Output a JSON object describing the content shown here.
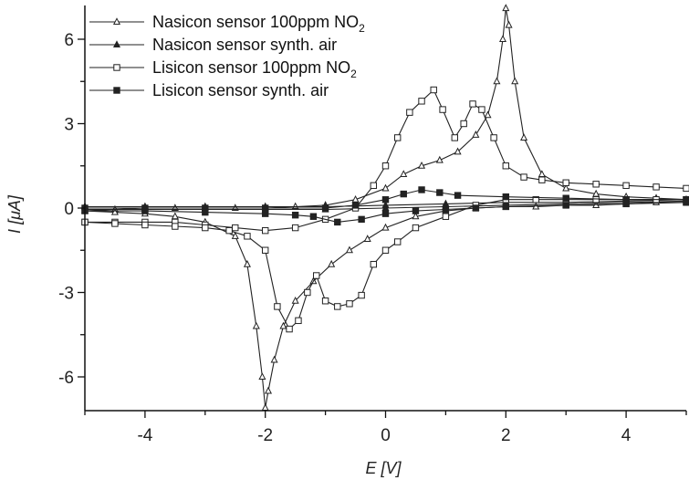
{
  "chart_data": {
    "type": "line",
    "xlabel": "E [V]",
    "ylabel": "I [μA]",
    "xlim": [
      -5,
      5
    ],
    "ylim": [
      -7.2,
      7.2
    ],
    "xticks": [
      -4,
      -2,
      0,
      2,
      4
    ],
    "yticks": [
      -6,
      -3,
      0,
      3,
      6
    ],
    "grid": false,
    "legend_position": "top-left",
    "series": [
      {
        "name": "Nasicon sensor 100ppm NO2",
        "marker": "open-triangle",
        "forward": [
          [
            -5,
            -0.1
          ],
          [
            -4.5,
            -0.05
          ],
          [
            -4,
            0
          ],
          [
            -3.5,
            0
          ],
          [
            -3,
            0
          ],
          [
            -2.5,
            0
          ],
          [
            -2,
            0
          ],
          [
            -1.5,
            0.05
          ],
          [
            -1,
            0.1
          ],
          [
            -0.5,
            0.3
          ],
          [
            0,
            0.7
          ],
          [
            0.3,
            1.2
          ],
          [
            0.6,
            1.5
          ],
          [
            0.9,
            1.7
          ],
          [
            1.2,
            2.0
          ],
          [
            1.5,
            2.6
          ],
          [
            1.7,
            3.3
          ],
          [
            1.85,
            4.5
          ],
          [
            1.95,
            6.0
          ],
          [
            2.0,
            7.1
          ],
          [
            2.05,
            6.5
          ],
          [
            2.15,
            4.5
          ],
          [
            2.3,
            2.5
          ],
          [
            2.6,
            1.2
          ],
          [
            3,
            0.7
          ],
          [
            3.5,
            0.5
          ],
          [
            4,
            0.4
          ],
          [
            4.5,
            0.35
          ],
          [
            5,
            0.3
          ]
        ],
        "reverse": [
          [
            5,
            0.2
          ],
          [
            4.5,
            0.2
          ],
          [
            4,
            0.15
          ],
          [
            3.5,
            0.1
          ],
          [
            3,
            0.1
          ],
          [
            2.5,
            0.05
          ],
          [
            2,
            0.05
          ],
          [
            1.5,
            0
          ],
          [
            1,
            -0.1
          ],
          [
            0.5,
            -0.3
          ],
          [
            0,
            -0.7
          ],
          [
            -0.3,
            -1.1
          ],
          [
            -0.6,
            -1.5
          ],
          [
            -0.9,
            -2.0
          ],
          [
            -1.2,
            -2.6
          ],
          [
            -1.5,
            -3.3
          ],
          [
            -1.7,
            -4.2
          ],
          [
            -1.85,
            -5.4
          ],
          [
            -1.95,
            -6.5
          ],
          [
            -2.0,
            -7.1
          ],
          [
            -2.05,
            -6.0
          ],
          [
            -2.15,
            -4.2
          ],
          [
            -2.3,
            -2.0
          ],
          [
            -2.5,
            -1.0
          ],
          [
            -3,
            -0.5
          ],
          [
            -3.5,
            -0.3
          ],
          [
            -4,
            -0.2
          ],
          [
            -4.5,
            -0.15
          ],
          [
            -5,
            -0.1
          ]
        ]
      },
      {
        "name": "Nasicon sensor synth. air",
        "marker": "filled-triangle",
        "forward": [
          [
            -5,
            0.05
          ],
          [
            -4,
            0.05
          ],
          [
            -3,
            0.05
          ],
          [
            -2,
            0.05
          ],
          [
            -1,
            0.05
          ],
          [
            0,
            0.1
          ],
          [
            1,
            0.15
          ],
          [
            2,
            0.2
          ],
          [
            3,
            0.2
          ],
          [
            4,
            0.25
          ],
          [
            5,
            0.3
          ]
        ],
        "reverse": [
          [
            5,
            0.25
          ],
          [
            4,
            0.2
          ],
          [
            3,
            0.15
          ],
          [
            2,
            0.1
          ],
          [
            1,
            0.05
          ],
          [
            0,
            0
          ],
          [
            -1,
            -0.05
          ],
          [
            -2,
            -0.05
          ],
          [
            -3,
            -0.05
          ],
          [
            -4,
            -0.05
          ],
          [
            -5,
            -0.05
          ]
        ]
      },
      {
        "name": "Lisicon sensor 100ppm NO2",
        "marker": "open-square",
        "forward": [
          [
            -5,
            -0.5
          ],
          [
            -4.5,
            -0.5
          ],
          [
            -4,
            -0.5
          ],
          [
            -3.5,
            -0.5
          ],
          [
            -3,
            -0.6
          ],
          [
            -2.5,
            -0.7
          ],
          [
            -2,
            -0.8
          ],
          [
            -1.5,
            -0.7
          ],
          [
            -1,
            -0.4
          ],
          [
            -0.5,
            0
          ],
          [
            -0.2,
            0.8
          ],
          [
            0,
            1.5
          ],
          [
            0.2,
            2.5
          ],
          [
            0.4,
            3.4
          ],
          [
            0.6,
            3.8
          ],
          [
            0.8,
            4.2
          ],
          [
            0.95,
            3.5
          ],
          [
            1.15,
            2.5
          ],
          [
            1.3,
            3.0
          ],
          [
            1.45,
            3.7
          ],
          [
            1.6,
            3.5
          ],
          [
            1.8,
            2.5
          ],
          [
            2.0,
            1.5
          ],
          [
            2.3,
            1.1
          ],
          [
            2.6,
            1.0
          ],
          [
            3,
            0.9
          ],
          [
            3.5,
            0.85
          ],
          [
            4,
            0.8
          ],
          [
            4.5,
            0.75
          ],
          [
            5,
            0.7
          ]
        ],
        "reverse": [
          [
            5,
            0.3
          ],
          [
            4.5,
            0.3
          ],
          [
            4,
            0.3
          ],
          [
            3.5,
            0.3
          ],
          [
            3,
            0.3
          ],
          [
            2.5,
            0.3
          ],
          [
            2,
            0.3
          ],
          [
            1.5,
            0.1
          ],
          [
            1,
            -0.3
          ],
          [
            0.5,
            -0.7
          ],
          [
            0.2,
            -1.2
          ],
          [
            0,
            -1.5
          ],
          [
            -0.2,
            -2.0
          ],
          [
            -0.4,
            -3.1
          ],
          [
            -0.6,
            -3.4
          ],
          [
            -0.8,
            -3.5
          ],
          [
            -1.0,
            -3.3
          ],
          [
            -1.15,
            -2.4
          ],
          [
            -1.3,
            -3.0
          ],
          [
            -1.45,
            -4.0
          ],
          [
            -1.6,
            -4.3
          ],
          [
            -1.8,
            -3.5
          ],
          [
            -2.0,
            -1.5
          ],
          [
            -2.3,
            -1.0
          ],
          [
            -2.6,
            -0.8
          ],
          [
            -3,
            -0.7
          ],
          [
            -3.5,
            -0.65
          ],
          [
            -4,
            -0.6
          ],
          [
            -4.5,
            -0.55
          ],
          [
            -5,
            -0.5
          ]
        ]
      },
      {
        "name": "Lisicon sensor synth. air",
        "marker": "filled-square",
        "forward": [
          [
            -5,
            0
          ],
          [
            -4,
            0
          ],
          [
            -3,
            0
          ],
          [
            -2,
            0
          ],
          [
            -1,
            0
          ],
          [
            -0.5,
            0.1
          ],
          [
            0,
            0.3
          ],
          [
            0.3,
            0.5
          ],
          [
            0.6,
            0.65
          ],
          [
            0.9,
            0.55
          ],
          [
            1.2,
            0.45
          ],
          [
            2,
            0.4
          ],
          [
            3,
            0.35
          ],
          [
            4,
            0.3
          ],
          [
            5,
            0.3
          ]
        ],
        "reverse": [
          [
            5,
            0.2
          ],
          [
            4,
            0.15
          ],
          [
            3,
            0.1
          ],
          [
            2,
            0.05
          ],
          [
            1.5,
            0
          ],
          [
            1,
            -0.05
          ],
          [
            0.5,
            -0.1
          ],
          [
            0,
            -0.2
          ],
          [
            -0.4,
            -0.4
          ],
          [
            -0.8,
            -0.5
          ],
          [
            -1.2,
            -0.3
          ],
          [
            -1.5,
            -0.25
          ],
          [
            -2,
            -0.2
          ],
          [
            -3,
            -0.15
          ],
          [
            -4,
            -0.1
          ],
          [
            -5,
            -0.1
          ]
        ]
      }
    ]
  },
  "legend": [
    {
      "text": "Nasicon sensor 100ppm NO",
      "sub": "2"
    },
    {
      "text": "Nasicon sensor synth. air",
      "sub": ""
    },
    {
      "text": "Lisicon sensor 100ppm NO",
      "sub": "2"
    },
    {
      "text": "Lisicon sensor synth. air",
      "sub": ""
    }
  ],
  "axis": {
    "x_title": "E [V]",
    "y_title": "I [μA]",
    "x_tick_labels": [
      "-4",
      "-2",
      "0",
      "2",
      "4"
    ],
    "y_tick_labels": [
      "-6",
      "-3",
      "0",
      "3",
      "6"
    ]
  },
  "colors": {
    "line": "#222222",
    "axis": "#111111",
    "background": "#ffffff"
  }
}
